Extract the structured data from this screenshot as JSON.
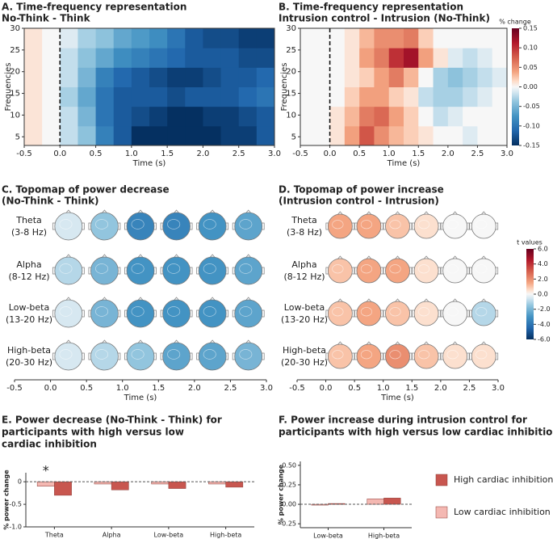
{
  "chart_data": [
    {
      "type": "heatmap",
      "title": "A. Time-frequency representation",
      "subtitle": "No-Think - Think",
      "xlabel": "Time (s)",
      "ylabel": "Frequencies",
      "x": [
        -0.375,
        -0.125,
        0.125,
        0.375,
        0.625,
        0.875,
        1.125,
        1.375,
        1.625,
        1.875,
        2.125,
        2.375,
        2.625,
        2.875
      ],
      "y": [
        5.25,
        9.75,
        14.25,
        18.75,
        23.25,
        27.75
      ],
      "z": [
        [
          0.01,
          0,
          -0.02,
          -0.04,
          -0.09,
          -0.12,
          -0.15,
          -0.15,
          -0.15,
          -0.15,
          -0.15,
          -0.14,
          -0.14,
          -0.12
        ],
        [
          0.01,
          0,
          -0.02,
          -0.05,
          -0.1,
          -0.12,
          -0.13,
          -0.14,
          -0.15,
          -0.15,
          -0.14,
          -0.14,
          -0.13,
          -0.12
        ],
        [
          0.01,
          0,
          -0.03,
          -0.06,
          -0.1,
          -0.12,
          -0.12,
          -0.12,
          -0.13,
          -0.12,
          -0.12,
          -0.12,
          -0.11,
          -0.1
        ],
        [
          0.01,
          0,
          -0.02,
          -0.05,
          -0.09,
          -0.11,
          -0.12,
          -0.13,
          -0.14,
          -0.14,
          -0.13,
          -0.12,
          -0.12,
          -0.11
        ],
        [
          0.01,
          0,
          -0.02,
          -0.04,
          -0.06,
          -0.08,
          -0.09,
          -0.1,
          -0.11,
          -0.12,
          -0.12,
          -0.12,
          -0.13,
          -0.13
        ],
        [
          0.01,
          0,
          -0.01,
          -0.03,
          -0.04,
          -0.06,
          -0.07,
          -0.08,
          -0.1,
          -0.12,
          -0.13,
          -0.13,
          -0.14,
          -0.14
        ]
      ],
      "xlim": [
        -0.5,
        3.0
      ],
      "ylim": [
        3,
        30
      ],
      "xticks": [
        -0.5,
        {
          "value": 0,
          "label": "0.0"
        },
        0.5,
        {
          "value": 1,
          "label": "1.0"
        },
        1.5,
        {
          "value": 2,
          "label": "2.0"
        },
        2.5,
        {
          "value": 3,
          "label": "3.0"
        }
      ],
      "yticks": [
        5,
        10,
        15,
        20,
        25,
        30
      ],
      "vline": 0,
      "clim": [
        -0.15,
        0.15
      ]
    },
    {
      "type": "heatmap",
      "title": "B. Time-frequency representation",
      "subtitle": "Intrusion control - Intrusion (No-Think)",
      "xlabel": "Time (s)",
      "ylabel": "Frequencies",
      "x": [
        -0.375,
        -0.125,
        0.125,
        0.375,
        0.625,
        0.875,
        1.125,
        1.375,
        1.625,
        1.875,
        2.125,
        2.375,
        2.625,
        2.875
      ],
      "y": [
        5.25,
        9.75,
        14.25,
        18.75,
        23.25,
        27.75
      ],
      "z": [
        [
          0,
          0,
          0.01,
          0.04,
          0.08,
          0.05,
          0.03,
          0.02,
          0.01,
          0,
          0,
          -0.01,
          0,
          0
        ],
        [
          0,
          0,
          0.01,
          0.03,
          0.06,
          0.07,
          0.04,
          0.02,
          0,
          -0.02,
          -0.01,
          0,
          0,
          0
        ],
        [
          0,
          0,
          0,
          0.02,
          0.04,
          0.04,
          0.02,
          0.01,
          -0.02,
          -0.03,
          -0.03,
          -0.02,
          -0.01,
          0
        ],
        [
          0,
          0,
          0,
          0.01,
          0.02,
          0.04,
          0.06,
          0.03,
          0,
          -0.03,
          -0.04,
          -0.03,
          -0.02,
          -0.01
        ],
        [
          0,
          0,
          0,
          0.01,
          0.04,
          0.06,
          0.1,
          0.12,
          0.04,
          0.01,
          -0.01,
          -0.02,
          -0.01,
          0
        ],
        [
          0,
          0,
          0,
          0.01,
          0.03,
          0.05,
          0.05,
          0.06,
          0.02,
          0,
          0,
          0,
          0,
          0
        ]
      ],
      "xlim": [
        -0.5,
        3.0
      ],
      "ylim": [
        3,
        30
      ],
      "xticks": [
        -0.5,
        {
          "value": 0,
          "label": "0.0"
        },
        0.5,
        {
          "value": 1,
          "label": "1.0"
        },
        1.5,
        {
          "value": 2,
          "label": "2.0"
        },
        2.5,
        {
          "value": 3,
          "label": "3.0"
        }
      ],
      "yticks": [
        5,
        10,
        15,
        20,
        25,
        30
      ],
      "vline": 0,
      "clim": [
        -0.15,
        0.15
      ],
      "colorbar": {
        "label": "% change",
        "ticks": [
          0.15,
          {
            "value": 0.1,
            "label": "0.10"
          },
          0.05,
          {
            "value": 0,
            "label": "0.00"
          },
          -0.05,
          {
            "value": -0.1,
            "label": "-0.10"
          },
          -0.15
        ]
      }
    },
    {
      "type": "topomap",
      "title": "C. Topomap of power decrease",
      "subtitle": "(No-Think - Think)",
      "rows": [
        {
          "name": "Theta",
          "range": "(3-8 Hz)"
        },
        {
          "name": "Alpha",
          "range": "(8-12 Hz)"
        },
        {
          "name": "Low-beta",
          "range": "(13-20 Hz)"
        },
        {
          "name": "High-beta",
          "range": "(20-30 Hz)"
        }
      ],
      "times": [
        0.25,
        0.75,
        1.25,
        1.75,
        2.25,
        2.75
      ],
      "values": [
        [
          -0.5,
          -1.5,
          -3.5,
          -3.5,
          -3,
          -2.5
        ],
        [
          -1,
          -2,
          -3,
          -3,
          -3,
          -2.5
        ],
        [
          -0.5,
          -2,
          -3,
          -3,
          -3,
          -2.5
        ],
        [
          -0.5,
          -1,
          -1.5,
          -2.5,
          -2.5,
          -2
        ]
      ],
      "xlabel": "Time (s)",
      "xlim": [
        -0.5,
        3.0
      ],
      "xticks": [
        -0.5,
        {
          "value": 0,
          "label": "0.0"
        },
        0.5,
        {
          "value": 1,
          "label": "1.0"
        },
        1.5,
        {
          "value": 2,
          "label": "2.0"
        },
        2.5,
        {
          "value": 3,
          "label": "3.0"
        }
      ],
      "clim": [
        -6,
        6
      ]
    },
    {
      "type": "topomap",
      "title": "D. Topomap of power increase",
      "subtitle": "(Intrusion control - Intrusion)",
      "rows": [
        {
          "name": "Theta",
          "range": "(3-8 Hz)"
        },
        {
          "name": "Alpha",
          "range": "(8-12 Hz)"
        },
        {
          "name": "Low-beta",
          "range": "(13-20 Hz)"
        },
        {
          "name": "High-beta",
          "range": "(20-30 Hz)"
        }
      ],
      "times": [
        0.25,
        0.75,
        1.25,
        1.75,
        2.25,
        2.75
      ],
      "values": [
        [
          1.5,
          1.5,
          1,
          0.5,
          0,
          0
        ],
        [
          1,
          1.5,
          1.5,
          0.5,
          0,
          0
        ],
        [
          1,
          1.5,
          1,
          0.5,
          0,
          -1
        ],
        [
          1,
          1.5,
          2,
          1,
          0.5,
          0.5
        ]
      ],
      "xlabel": "Time (s)",
      "xlim": [
        -0.5,
        3.0
      ],
      "xticks": [
        -0.5,
        {
          "value": 0,
          "label": "0.0"
        },
        0.5,
        {
          "value": 1,
          "label": "1.0"
        },
        1.5,
        {
          "value": 2,
          "label": "2.0"
        },
        2.5,
        {
          "value": 3,
          "label": "3.0"
        }
      ],
      "clim": [
        -6,
        6
      ],
      "colorbar": {
        "label": "t values",
        "ticks": [
          {
            "value": 6,
            "label": "6.0"
          },
          {
            "value": 4,
            "label": "4.0"
          },
          {
            "value": 2,
            "label": "2.0"
          },
          {
            "value": 0,
            "label": "0.0"
          },
          {
            "value": -2,
            "label": "-2.0"
          },
          {
            "value": -4,
            "label": "-4.0"
          },
          {
            "value": -6,
            "label": "-6.0"
          }
        ]
      }
    },
    {
      "type": "bar",
      "title": [
        "E. Power decrease (No-Think - Think) for",
        "participants with high versus low",
        "cardiac inhibition"
      ],
      "ylabel": "% power change",
      "categories": [
        "Theta",
        "Alpha",
        "Low-beta",
        "High-beta"
      ],
      "series": [
        {
          "color": "#c8564f",
          "values": [
            -0.3,
            -0.18,
            -0.15,
            -0.12
          ]
        },
        {
          "color": "#f4b8b2",
          "values": [
            -0.1,
            -0.05,
            -0.05,
            -0.05
          ]
        }
      ],
      "ylim": [
        -1.0,
        0.2
      ],
      "yticks": [
        0,
        -0.5,
        {
          "value": -1,
          "label": "-1.0"
        }
      ],
      "annotation": {
        "text": "*",
        "category": "Theta"
      }
    },
    {
      "type": "bar",
      "title": [
        "F. Power increase during intrusion control for",
        "participants with high versus low cardiac inhibition"
      ],
      "ylabel": "% power change",
      "categories": [
        "Low-beta",
        "High-beta"
      ],
      "series": [
        {
          "name": "High cardiac inhibition",
          "color": "#c8564f",
          "values": [
            0.01,
            0.08
          ]
        },
        {
          "name": "Low cardiac inhibition",
          "color": "#f4b8b2",
          "values": [
            0.0,
            0.07
          ]
        }
      ],
      "ylim": [
        -0.3,
        0.55
      ],
      "yticks": [
        -0.25,
        {
          "value": 0,
          "label": "0.00"
        },
        0.25,
        {
          "value": 0.5,
          "label": "0.50"
        }
      ]
    }
  ]
}
